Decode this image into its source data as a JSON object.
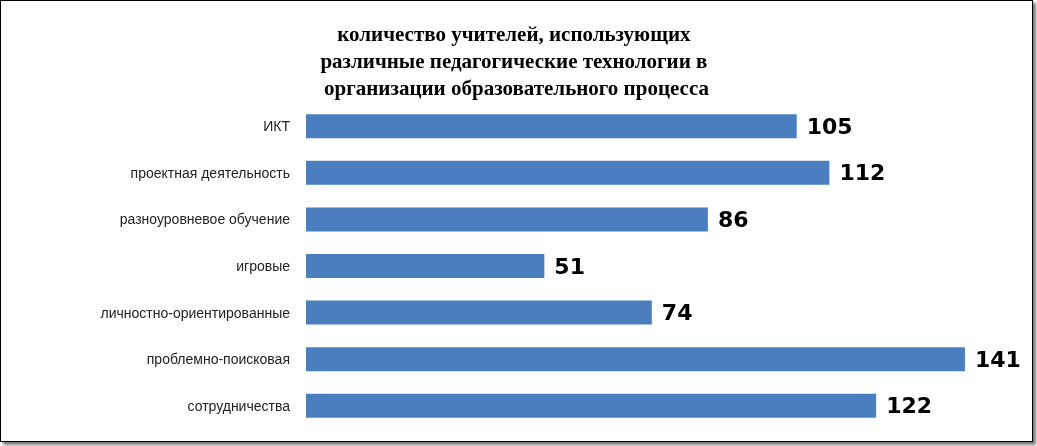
{
  "chart_data": {
    "type": "bar",
    "orientation": "horizontal",
    "title": "количество учителей, использующих различные педагогические технологии в организации образовательного процесса",
    "categories": [
      "ИКТ",
      "проектная деятельность",
      "разноуровневое обучение",
      "игровые",
      "личностно-ориентированные",
      "проблемно-поисковая",
      "сотрудничества"
    ],
    "values": [
      105,
      112,
      86,
      51,
      74,
      141,
      122
    ],
    "color": "#4a7ebf",
    "data_labels": true
  }
}
